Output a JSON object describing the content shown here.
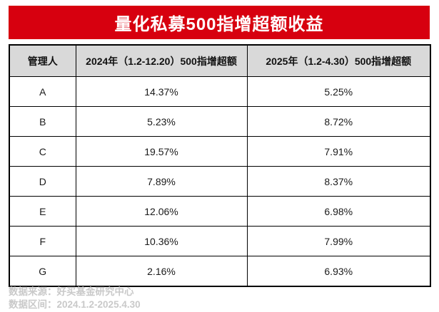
{
  "title": "量化私募500指增超额收益",
  "colors": {
    "banner_bg": "#D7000F",
    "banner_text": "#FFFFFF",
    "header_bg": "#D9D9D9",
    "border": "#000000",
    "footer_text": "#C9C9C9"
  },
  "table": {
    "headers": [
      "管理人",
      "2024年（1.2-12.20）500指增超额",
      "2025年（1.2-4.30）500指增超额"
    ],
    "rows": [
      [
        "A",
        "14.37%",
        "5.25%"
      ],
      [
        "B",
        "5.23%",
        "8.72%"
      ],
      [
        "C",
        "19.57%",
        "7.91%"
      ],
      [
        "D",
        "7.89%",
        "8.37%"
      ],
      [
        "E",
        "12.06%",
        "6.98%"
      ],
      [
        "F",
        "10.36%",
        "7.99%"
      ],
      [
        "G",
        "2.16%",
        "6.93%"
      ]
    ]
  },
  "footer": {
    "source": "数据来源：好买基金研究中心",
    "range": "数据区间：2024.1.2-2025.4.30"
  },
  "chart_data": {
    "type": "table",
    "title": "量化私募500指增超额收益",
    "columns": [
      "管理人",
      "2024年（1.2-12.20）500指增超额",
      "2025年（1.2-4.30）500指增超额"
    ],
    "categories": [
      "A",
      "B",
      "C",
      "D",
      "E",
      "F",
      "G"
    ],
    "series": [
      {
        "name": "2024年（1.2-12.20）500指增超额",
        "values": [
          14.37,
          5.23,
          19.57,
          7.89,
          12.06,
          10.36,
          2.16
        ],
        "unit": "%"
      },
      {
        "name": "2025年（1.2-4.30）500指增超额",
        "values": [
          5.25,
          8.72,
          7.91,
          8.37,
          6.98,
          7.99,
          6.93
        ],
        "unit": "%"
      }
    ],
    "source": "数据来源：好买基金研究中心",
    "data_range": "数据区间：2024.1.2-2025.4.30"
  }
}
